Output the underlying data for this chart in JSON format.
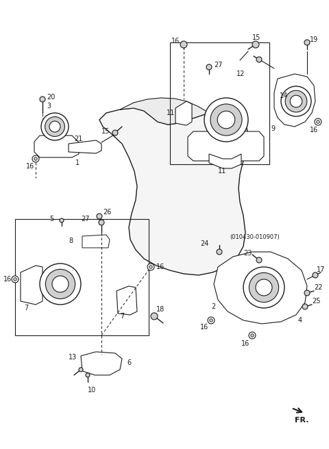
{
  "bg_color": "#ffffff",
  "lc": "#1a1a1a",
  "gray_fill": "#e8e8e8",
  "light_gray": "#d0d0d0",
  "dark_gray": "#555555",
  "figw": 4.8,
  "figh": 6.56,
  "dpi": 100
}
